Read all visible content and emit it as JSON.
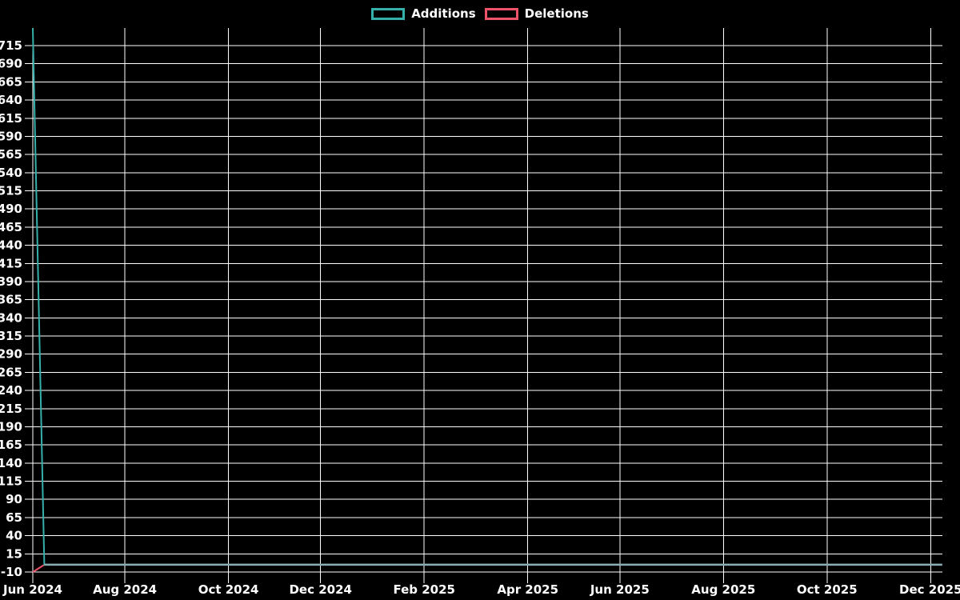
{
  "legend": {
    "items": [
      {
        "label": "Additions",
        "color": "#35b0aa"
      },
      {
        "label": "Deletions",
        "color": "#ef5369"
      }
    ]
  },
  "chart_data": {
    "type": "line",
    "title": "",
    "xlabel": "",
    "ylabel": "",
    "background": "#000000",
    "grid": true,
    "grid_color": "#ffffff",
    "legend_position": "top-center",
    "n_points": 80,
    "x_unit": "week",
    "ylim": [
      -19,
      740
    ],
    "y_ticks": [
      -10,
      15,
      40,
      65,
      90,
      115,
      140,
      165,
      190,
      215,
      240,
      265,
      290,
      315,
      340,
      365,
      390,
      415,
      440,
      465,
      490,
      515,
      540,
      565,
      590,
      615,
      640,
      665,
      690,
      715
    ],
    "x_ticks": [
      {
        "label": "Jun 2024",
        "index": 0
      },
      {
        "label": "Aug 2024",
        "index": 8
      },
      {
        "label": "Oct 2024",
        "index": 17
      },
      {
        "label": "Dec 2024",
        "index": 25
      },
      {
        "label": "Feb 2025",
        "index": 34
      },
      {
        "label": "Apr 2025",
        "index": 43
      },
      {
        "label": "Jun 2025",
        "index": 51
      },
      {
        "label": "Aug 2025",
        "index": 60
      },
      {
        "label": "Oct 2025",
        "index": 69
      },
      {
        "label": "Dec 2025",
        "index": 78
      }
    ],
    "series": [
      {
        "name": "Additions",
        "color": "#35b0aa",
        "values": [
          739,
          0,
          0,
          0,
          0,
          0,
          0,
          0,
          0,
          0,
          0,
          0,
          0,
          0,
          0,
          0,
          0,
          0,
          0,
          0,
          0,
          0,
          0,
          0,
          0,
          0,
          0,
          0,
          0,
          0,
          0,
          0,
          0,
          0,
          0,
          0,
          0,
          0,
          0,
          0,
          0,
          0,
          0,
          0,
          0,
          0,
          0,
          0,
          0,
          0,
          0,
          0,
          0,
          0,
          0,
          0,
          0,
          0,
          0,
          0,
          0,
          0,
          0,
          0,
          0,
          0,
          0,
          0,
          0,
          0,
          0,
          0,
          0,
          0,
          0,
          0,
          0,
          0,
          0,
          0
        ]
      },
      {
        "name": "Deletions",
        "color": "#ef5369",
        "values": [
          -10,
          0,
          0,
          0,
          0,
          0,
          0,
          0,
          0,
          0,
          0,
          0,
          0,
          0,
          0,
          0,
          0,
          0,
          0,
          0,
          0,
          0,
          0,
          0,
          0,
          0,
          0,
          0,
          0,
          0,
          0,
          0,
          0,
          0,
          0,
          0,
          0,
          0,
          0,
          0,
          0,
          0,
          0,
          0,
          0,
          0,
          0,
          0,
          0,
          0,
          0,
          0,
          0,
          0,
          0,
          0,
          0,
          0,
          0,
          0,
          0,
          0,
          0,
          0,
          0,
          0,
          0,
          0,
          0,
          0,
          0,
          0,
          0,
          0,
          0,
          0,
          0,
          0,
          0,
          0
        ]
      }
    ],
    "overlap_color": "#8aaeb1"
  }
}
